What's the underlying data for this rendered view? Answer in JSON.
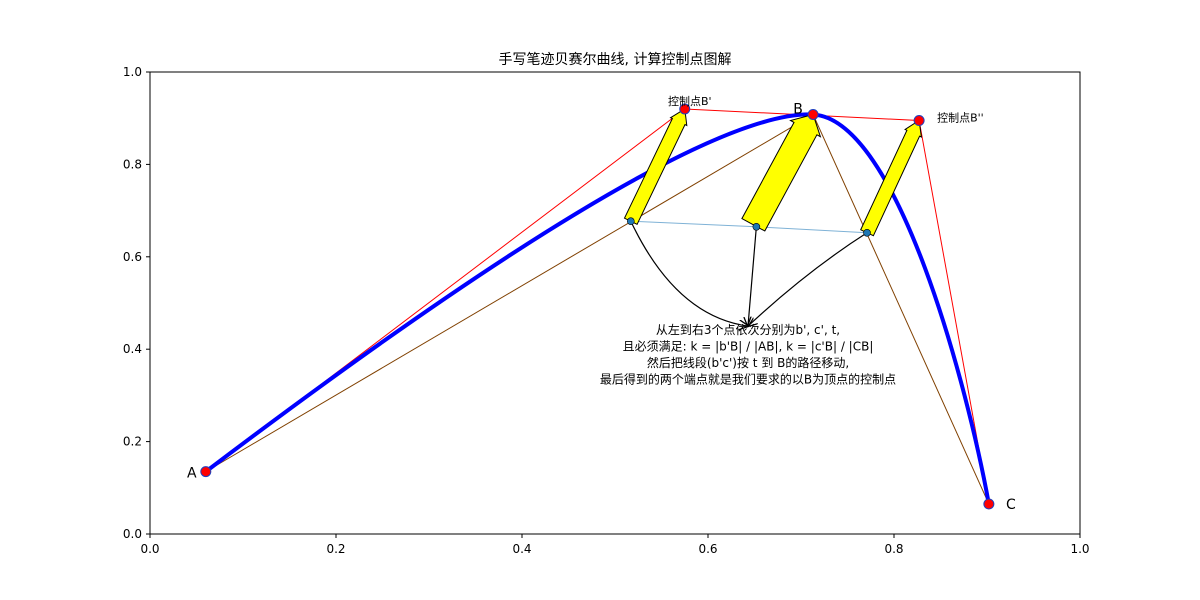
{
  "chart_data": {
    "type": "line",
    "title": "手写笔迹贝赛尔曲线, 计算控制点图解",
    "xlabel": "",
    "ylabel": "",
    "xlim": [
      0.0,
      1.0
    ],
    "ylim": [
      0.0,
      1.0
    ],
    "x_ticks": [
      0.0,
      0.2,
      0.4,
      0.6,
      0.8,
      1.0
    ],
    "x_tick_labels": [
      "0.0",
      "0.2",
      "0.4",
      "0.6",
      "0.8",
      "1.0"
    ],
    "y_ticks": [
      0.0,
      0.2,
      0.4,
      0.6,
      0.8,
      1.0
    ],
    "y_tick_labels": [
      "0.0",
      "0.2",
      "0.4",
      "0.6",
      "0.8",
      "1.0"
    ],
    "grid": false,
    "points": {
      "A": {
        "label": "A",
        "x": 0.06,
        "y": 0.135
      },
      "B": {
        "label": "B",
        "x": 0.713,
        "y": 0.908
      },
      "C": {
        "label": "C",
        "x": 0.902,
        "y": 0.065
      },
      "B1": {
        "label": "控制点B'",
        "x": 0.575,
        "y": 0.92
      },
      "B2": {
        "label": "控制点B''",
        "x": 0.827,
        "y": 0.895
      }
    },
    "midpoints": {
      "b1": {
        "x": 0.517,
        "y": 0.677
      },
      "c1": {
        "x": 0.652,
        "y": 0.665
      },
      "t": {
        "x": 0.771,
        "y": 0.652
      }
    },
    "annotation": {
      "lines": [
        "从左到右3个点依次分别为b', c', t,",
        "且必须满足: k = |b'B| / |AB|, k = |c'B| / |CB|",
        "然后把线段(b'c')按 t 到 B的路径移动,",
        "最后得到的两个端点就是我们要求的以B为顶点的控制点"
      ],
      "target": {
        "x": 0.643,
        "y": 0.45
      }
    },
    "colors": {
      "curve": "#0000ff",
      "control_polygon": "#ff0000",
      "chords": "#804000",
      "point_marker": "#ff0000",
      "midpoint_marker": "#1f77b4",
      "midline": "#7fb2d6",
      "arrow_fill": "#ffff00",
      "arrow_edge": "#000000"
    }
  }
}
